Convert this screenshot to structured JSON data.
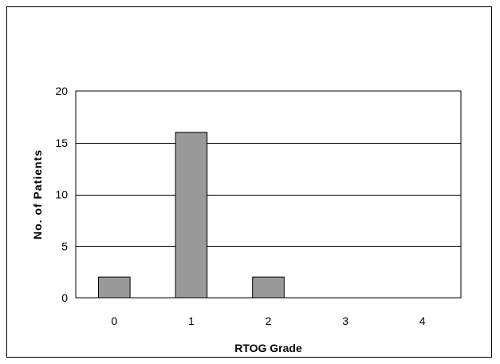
{
  "chart_data": {
    "type": "bar",
    "title": "",
    "xlabel": "RTOG Grade",
    "ylabel": "No. of Patients",
    "categories": [
      "0",
      "1",
      "2",
      "3",
      "4"
    ],
    "values": [
      2,
      16,
      2,
      0,
      0
    ],
    "ylim": [
      0,
      20
    ],
    "yticks": [
      0,
      5,
      10,
      15,
      20
    ],
    "grid": true,
    "legend": "none",
    "colors": {
      "bar_fill": "#999999",
      "bar_stroke": "#000000",
      "grid": "#000000",
      "plot_bg": "#ffffff"
    }
  }
}
